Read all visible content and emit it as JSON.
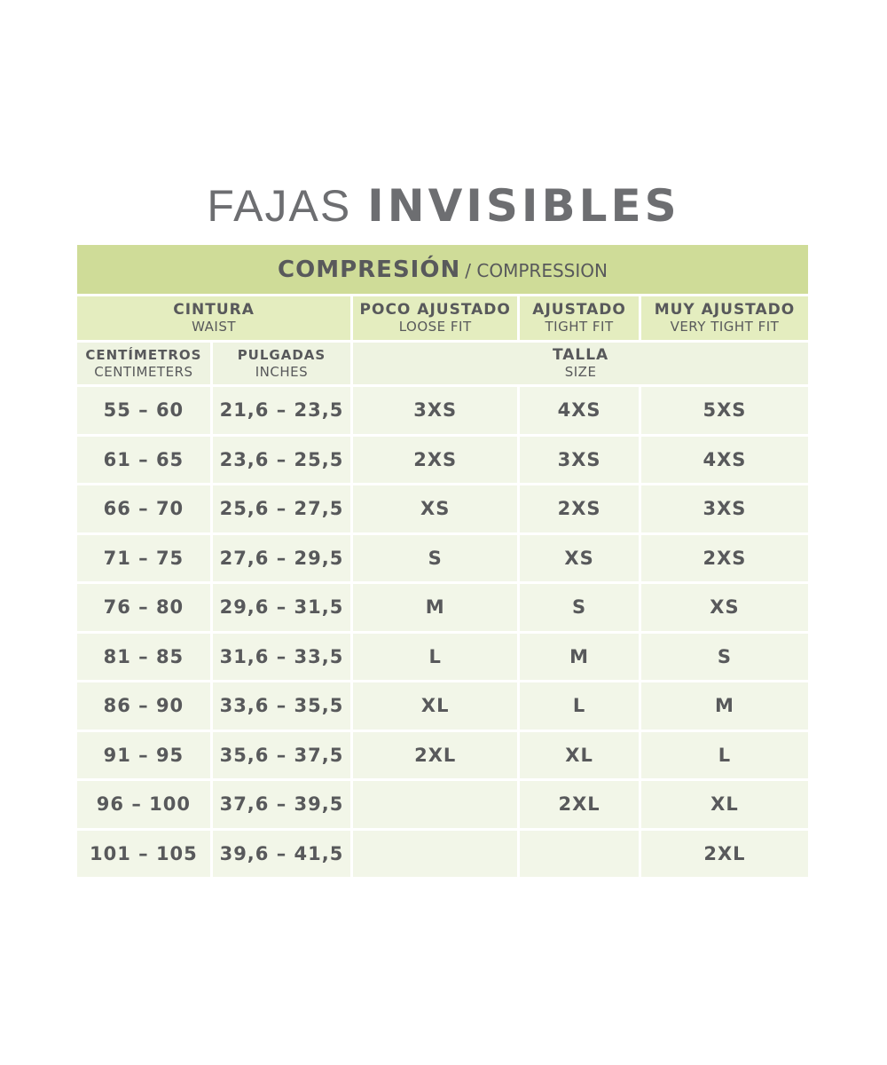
{
  "title": {
    "light": "FAJAS",
    "bold": "INVISIBLES"
  },
  "table": {
    "compression": {
      "es": "COMPRESIÓN",
      "en": "/ COMPRESSION"
    },
    "waist": {
      "es": "CINTURA",
      "en": "WAIST"
    },
    "fits": [
      {
        "es": "POCO AJUSTADO",
        "en": "LOOSE FIT"
      },
      {
        "es": "AJUSTADO",
        "en": "TIGHT FIT"
      },
      {
        "es": "MUY AJUSTADO",
        "en": "VERY TIGHT FIT"
      }
    ],
    "cm": {
      "es": "CENTÍMETROS",
      "en": "CENTIMETERS"
    },
    "in": {
      "es": "PULGADAS",
      "en": "INCHES"
    },
    "size": {
      "es": "TALLA",
      "en": "SIZE"
    },
    "rows": [
      [
        "55 – 60",
        "21,6 – 23,5",
        "3XS",
        "4XS",
        "5XS"
      ],
      [
        "61 – 65",
        "23,6 – 25,5",
        "2XS",
        "3XS",
        "4XS"
      ],
      [
        "66 – 70",
        "25,6 – 27,5",
        "XS",
        "2XS",
        "3XS"
      ],
      [
        "71 – 75",
        "27,6 – 29,5",
        "S",
        "XS",
        "2XS"
      ],
      [
        "76 – 80",
        "29,6 – 31,5",
        "M",
        "S",
        "XS"
      ],
      [
        "81 – 85",
        "31,6 – 33,5",
        "L",
        "M",
        "S"
      ],
      [
        "86 – 90",
        "33,6 – 35,5",
        "XL",
        "L",
        "M"
      ],
      [
        "91 – 95",
        "35,6 – 37,5",
        "2XL",
        "XL",
        "L"
      ],
      [
        "96 – 100",
        "37,6 – 39,5",
        "",
        "2XL",
        "XL"
      ],
      [
        "101 – 105",
        "39,6 – 41,5",
        "",
        "",
        "2XL"
      ]
    ]
  }
}
